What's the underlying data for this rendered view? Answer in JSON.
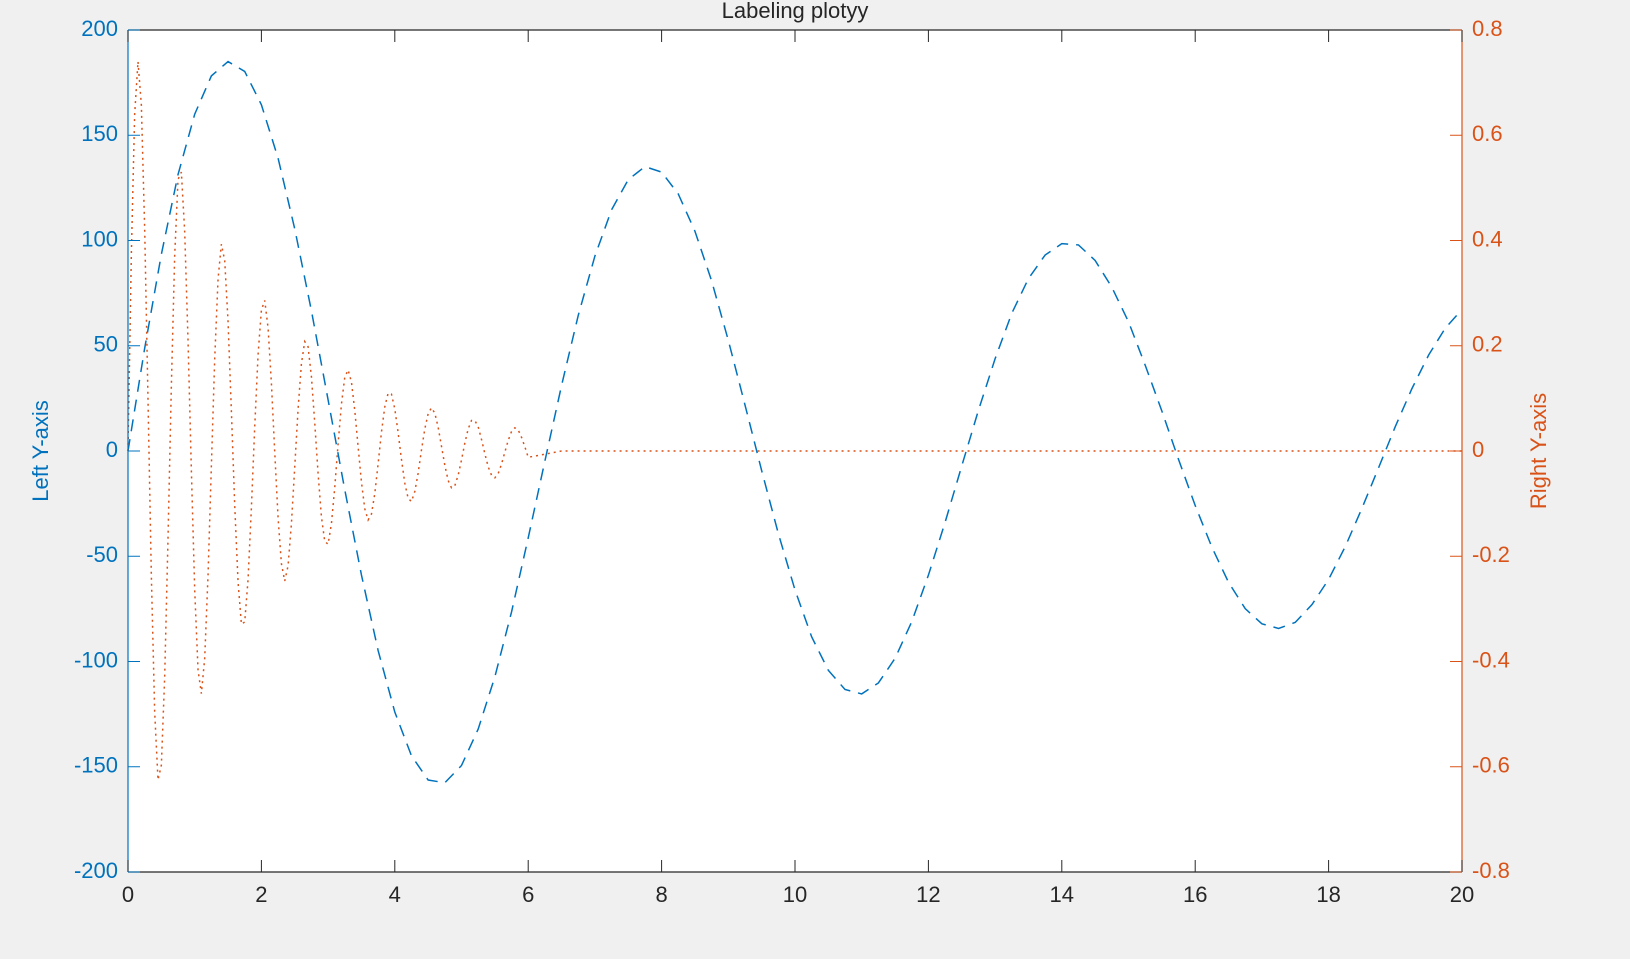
{
  "chart_data": {
    "type": "line",
    "title": "Labeling plotyy",
    "ylabel": "Left Y-axis",
    "y2label": "Right Y-axis",
    "xlim": [
      0,
      20
    ],
    "xticks": [
      0,
      2,
      4,
      6,
      8,
      10,
      12,
      14,
      16,
      18,
      20
    ],
    "ylim": [
      -200,
      200
    ],
    "yticks": [
      -200,
      -150,
      -100,
      -50,
      0,
      50,
      100,
      150,
      200
    ],
    "y2lim": [
      -0.8,
      0.8
    ],
    "y2ticks": [
      -0.8,
      -0.6,
      -0.4,
      -0.2,
      0,
      0.2,
      0.4,
      0.6,
      0.8
    ],
    "y_color": "#0072bd",
    "y2_color": "#d95319",
    "series": [
      {
        "color": "#0072bd",
        "line_style": "dashed",
        "x": [
          0,
          0.25,
          0.5,
          0.75,
          1,
          1.25,
          1.5,
          1.75,
          2,
          2.25,
          2.5,
          2.75,
          3,
          3.25,
          3.5,
          3.75,
          4,
          4.25,
          4.5,
          4.75,
          5,
          5.25,
          5.5,
          5.75,
          6,
          6.25,
          6.5,
          6.75,
          7,
          7.25,
          7.5,
          7.75,
          8,
          8.25,
          8.5,
          8.75,
          9,
          9.25,
          9.5,
          9.75,
          10,
          10.25,
          10.5,
          10.75,
          11,
          11.25,
          11.5,
          11.75,
          12,
          12.25,
          12.5,
          12.75,
          13,
          13.25,
          13.5,
          13.75,
          14,
          14.25,
          14.5,
          14.75,
          15,
          15.25,
          15.5,
          15.75,
          16,
          16.25,
          16.5,
          16.75,
          17,
          17.25,
          17.5,
          17.75,
          18,
          18.25,
          18.5,
          18.75,
          19,
          19.25,
          19.5,
          19.75,
          20
        ],
        "values": [
          0,
          48.8,
          93.4,
          131.3,
          160.0,
          178.2,
          185.0,
          180.3,
          164.5,
          139.1,
          105.5,
          66.6,
          24.3,
          -18.4,
          -58.9,
          -94.8,
          -124.0,
          -144.8,
          -156.3,
          -157.6,
          -149.4,
          -132.1,
          -107.3,
          -76.5,
          -41.3,
          -4.8,
          31.1,
          64.4,
          92.6,
          114.6,
          128.9,
          135.1,
          132.5,
          122.1,
          104.4,
          80.8,
          52.6,
          21.9,
          -9.3,
          -39.2,
          -66.0,
          -88.3,
          -104.2,
          -113.3,
          -115.4,
          -110.2,
          -98.5,
          -81.1,
          -59.0,
          -33.9,
          -7.1,
          19.3,
          43.8,
          65.4,
          81.9,
          93.1,
          98.5,
          97.9,
          90.5,
          77.8,
          61.4,
          40.8,
          19.0,
          -4.0,
          -25.9,
          -45.7,
          -62.4,
          -74.9,
          -82.1,
          -84.3,
          -81.4,
          -73.0,
          -61.0,
          -45.4,
          -27.2,
          -7.9,
          11.6,
          29.7,
          45.6,
          58.4,
          67.2
        ]
      },
      {
        "color": "#d95319",
        "line_style": "dotted",
        "axis": "y2",
        "x": [
          0,
          0.05,
          0.1,
          0.15,
          0.2,
          0.25,
          0.3,
          0.35,
          0.4,
          0.45,
          0.5,
          0.55,
          0.6,
          0.65,
          0.7,
          0.75,
          0.8,
          0.85,
          0.9,
          0.95,
          1,
          1.05,
          1.1,
          1.15,
          1.2,
          1.25,
          1.3,
          1.35,
          1.4,
          1.45,
          1.5,
          1.55,
          1.6,
          1.65,
          1.7,
          1.75,
          1.8,
          1.85,
          1.9,
          1.95,
          2,
          2.05,
          2.1,
          2.15,
          2.2,
          2.25,
          2.3,
          2.35,
          2.4,
          2.45,
          2.5,
          2.55,
          2.6,
          2.65,
          2.7,
          2.75,
          2.8,
          2.85,
          2.9,
          2.95,
          3,
          3.05,
          3.1,
          3.15,
          3.2,
          3.25,
          3.3,
          3.35,
          3.4,
          3.45,
          3.5,
          3.55,
          3.6,
          3.65,
          3.7,
          3.75,
          3.8,
          3.85,
          3.9,
          3.95,
          4,
          4.05,
          4.1,
          4.15,
          4.2,
          4.25,
          4.3,
          4.35,
          4.4,
          4.45,
          4.5,
          4.55,
          4.6,
          4.65,
          4.7,
          4.75,
          4.8,
          4.85,
          4.9,
          4.95,
          5,
          5.05,
          5.1,
          5.15,
          5.2,
          5.25,
          5.3,
          5.35,
          5.4,
          5.45,
          5.5,
          5.55,
          5.6,
          5.65,
          5.7,
          5.75,
          5.8,
          5.85,
          5.9,
          5.95,
          6,
          6.5,
          7,
          7.5,
          8,
          8.5,
          9,
          9.5,
          10,
          10.5,
          11,
          11.5,
          12,
          12.5,
          13,
          13.5,
          14,
          14.5,
          15,
          15.5,
          16,
          16.5,
          17,
          17.5,
          18,
          18.5,
          19,
          19.5,
          20
        ],
        "values": [
          0,
          0.374,
          0.64,
          0.74,
          0.658,
          0.422,
          0.097,
          -0.236,
          -0.496,
          -0.625,
          -0.597,
          -0.429,
          -0.165,
          0.124,
          0.371,
          0.516,
          0.53,
          0.417,
          0.21,
          -0.037,
          -0.264,
          -0.416,
          -0.461,
          -0.394,
          -0.236,
          -0.028,
          0.175,
          0.327,
          0.393,
          0.362,
          0.246,
          0.076,
          -0.103,
          -0.249,
          -0.329,
          -0.325,
          -0.244,
          -0.108,
          0.046,
          0.183,
          0.268,
          0.286,
          0.234,
          0.129,
          -0.002,
          -0.127,
          -0.214,
          -0.247,
          -0.218,
          -0.138,
          -0.03,
          0.08,
          0.166,
          0.208,
          0.198,
          0.141,
          0.053,
          -0.043,
          -0.125,
          -0.172,
          -0.177,
          -0.138,
          -0.069,
          0.014,
          0.089,
          0.14,
          0.154,
          0.131,
          0.077,
          0.008,
          -0.059,
          -0.11,
          -0.131,
          -0.12,
          -0.081,
          -0.024,
          0.036,
          0.084,
          0.11,
          0.108,
          0.08,
          0.035,
          -0.016,
          -0.061,
          -0.09,
          -0.096,
          -0.077,
          -0.042,
          0.002,
          0.042,
          0.071,
          0.082,
          0.072,
          0.045,
          0.009,
          -0.027,
          -0.056,
          -0.07,
          -0.066,
          -0.046,
          -0.017,
          0.015,
          0.042,
          0.058,
          0.058,
          0.046,
          0.022,
          -0.005,
          -0.03,
          -0.046,
          -0.051,
          -0.043,
          -0.025,
          -0.002,
          0.02,
          0.037,
          0.044,
          0.04,
          0.026,
          0.008,
          -0.012,
          0,
          0,
          0,
          0,
          0,
          0,
          0,
          0,
          0,
          0,
          0,
          0,
          0,
          0,
          0,
          0,
          0,
          0,
          0,
          0,
          0,
          0,
          0,
          0,
          0,
          0,
          0,
          0
        ]
      }
    ]
  }
}
